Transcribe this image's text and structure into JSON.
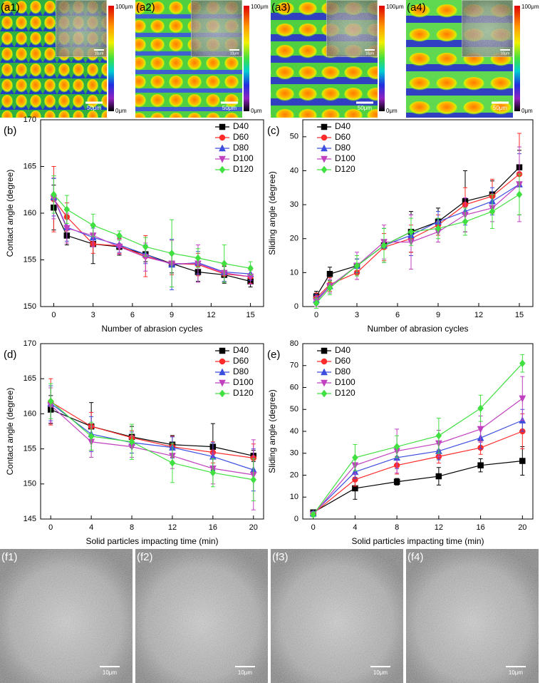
{
  "top_panels": [
    {
      "label": "(a1)",
      "scale": "50μm",
      "inset_scale": "10μm",
      "colorbar_max": "100μm",
      "colorbar_min": "0μm"
    },
    {
      "label": "(a2)",
      "scale": "50μm",
      "inset_scale": "10μm",
      "colorbar_max": "100μm",
      "colorbar_min": "0μm"
    },
    {
      "label": "(a3)",
      "scale": "50μm",
      "inset_scale": "10μm",
      "colorbar_max": "100μm",
      "colorbar_min": "0μm"
    },
    {
      "label": "(a4)",
      "scale": "50μm",
      "inset_scale": "10μm",
      "colorbar_max": "100μm",
      "colorbar_min": "0μm"
    }
  ],
  "bottom_panels": [
    {
      "label": "(f1)",
      "scale": "10μm"
    },
    {
      "label": "(f2)",
      "scale": "10μm"
    },
    {
      "label": "(f3)",
      "scale": "10μm"
    },
    {
      "label": "(f4)",
      "scale": "10μm"
    }
  ],
  "chart_data": [
    {
      "type": "line",
      "label": "(b)",
      "xlabel": "Number of abrasion cycles",
      "ylabel": "Contact angle (degree)",
      "x": [
        0,
        1,
        3,
        5,
        7,
        9,
        11,
        13,
        15
      ],
      "xlim": [
        -1,
        16
      ],
      "xticks": [
        0,
        3,
        6,
        9,
        12,
        15
      ],
      "ylim": [
        150,
        170
      ],
      "yticks": [
        150,
        155,
        160,
        165,
        170
      ],
      "legend": "upper right",
      "series": [
        {
          "name": "D40",
          "color": "#000000",
          "marker": "square",
          "values": [
            160.6,
            157.6,
            156.7,
            156.4,
            155.6,
            154.6,
            153.7,
            153.4,
            152.7
          ],
          "errors": [
            2.4,
            1.0,
            2.1,
            0.9,
            0.8,
            1.0,
            1.0,
            0.9,
            0.6
          ]
        },
        {
          "name": "D60",
          "color": "#ff2a2a",
          "marker": "circle",
          "values": [
            161.5,
            159.6,
            156.7,
            156.5,
            155.4,
            154.6,
            154.5,
            153.5,
            153.2
          ],
          "errors": [
            3.5,
            1.5,
            1.0,
            0.8,
            2.2,
            1.2,
            1.2,
            0.9,
            0.7
          ]
        },
        {
          "name": "D80",
          "color": "#3b4ee0",
          "marker": "triangle-up",
          "values": [
            161.7,
            158.5,
            157.4,
            156.6,
            155.6,
            154.5,
            154.7,
            153.7,
            153.5
          ],
          "errors": [
            2.0,
            1.5,
            1.0,
            0.8,
            1.0,
            2.7,
            1.2,
            1.0,
            0.7
          ]
        },
        {
          "name": "D100",
          "color": "#c040c0",
          "marker": "triangle-down",
          "values": [
            161.6,
            158.4,
            157.6,
            156.4,
            155.3,
            154.6,
            154.6,
            153.6,
            153.2
          ],
          "errors": [
            2.2,
            1.6,
            1.2,
            0.8,
            1.5,
            2.5,
            2.0,
            1.0,
            0.8
          ]
        },
        {
          "name": "D120",
          "color": "#40e040",
          "marker": "diamond",
          "values": [
            162.0,
            160.4,
            158.7,
            157.6,
            156.4,
            155.7,
            155.2,
            154.6,
            154.1
          ],
          "errors": [
            2.0,
            1.5,
            1.2,
            0.5,
            1.0,
            3.6,
            1.0,
            2.0,
            0.7
          ]
        }
      ]
    },
    {
      "type": "line",
      "label": "(c)",
      "xlabel": "Number of abrasion cycles",
      "ylabel": "Sliding angle (degree)",
      "x": [
        0,
        1,
        3,
        5,
        7,
        9,
        11,
        13,
        15
      ],
      "xlim": [
        -1,
        16
      ],
      "xticks": [
        0,
        3,
        6,
        9,
        12,
        15
      ],
      "ylim": [
        0,
        55
      ],
      "yticks": [
        0,
        10,
        20,
        30,
        40,
        50
      ],
      "legend": "upper left",
      "series": [
        {
          "name": "D40",
          "color": "#000000",
          "marker": "square",
          "values": [
            3,
            9.6,
            12,
            18,
            22,
            25,
            31,
            33,
            41
          ],
          "errors": [
            1.5,
            2,
            2,
            5,
            6,
            4,
            9,
            4,
            5
          ]
        },
        {
          "name": "D60",
          "color": "#ff2a2a",
          "marker": "circle",
          "values": [
            2.5,
            6.5,
            10,
            17.5,
            20,
            24,
            30,
            32.5,
            39
          ],
          "errors": [
            1.5,
            2,
            2,
            4,
            4,
            3,
            5,
            5,
            12
          ]
        },
        {
          "name": "D80",
          "color": "#3b4ee0",
          "marker": "triangle-up",
          "values": [
            2,
            6,
            12,
            18,
            21,
            25,
            28,
            31,
            36
          ],
          "errors": [
            1.5,
            2,
            2,
            5,
            6,
            3,
            4,
            4,
            9
          ]
        },
        {
          "name": "D100",
          "color": "#c040c0",
          "marker": "triangle-down",
          "values": [
            1.5,
            6,
            12,
            19,
            19,
            22,
            27,
            29,
            36
          ],
          "errors": [
            1.5,
            2,
            4,
            5,
            8,
            3,
            5,
            4,
            11
          ]
        },
        {
          "name": "D120",
          "color": "#40e040",
          "marker": "diamond",
          "values": [
            1,
            5.5,
            12,
            18,
            22,
            23,
            25,
            28,
            33
          ],
          "errors": [
            1.5,
            2,
            3,
            5,
            4,
            3,
            4,
            5,
            6
          ]
        }
      ]
    },
    {
      "type": "line",
      "label": "(d)",
      "xlabel": "Solid particles impacting time (min)",
      "ylabel": "Contact angle (degree)",
      "x": [
        0,
        4,
        8,
        12,
        16,
        20
      ],
      "xlim": [
        -1,
        21
      ],
      "xticks": [
        0,
        4,
        8,
        12,
        16,
        20
      ],
      "ylim": [
        145,
        170
      ],
      "yticks": [
        145,
        150,
        155,
        160,
        165,
        170
      ],
      "legend": "upper right",
      "series": [
        {
          "name": "D40",
          "color": "#000000",
          "marker": "square",
          "values": [
            160.6,
            158.2,
            156.7,
            155.6,
            155.3,
            154.0
          ],
          "errors": [
            2.0,
            3.4,
            1.5,
            1.3,
            3.3,
            0.8
          ]
        },
        {
          "name": "D60",
          "color": "#ff2a2a",
          "marker": "circle",
          "values": [
            161.7,
            158.2,
            156.6,
            155.3,
            154.5,
            153.7
          ],
          "errors": [
            3.3,
            2.0,
            1.0,
            1.5,
            1.5,
            2.0
          ]
        },
        {
          "name": "D80",
          "color": "#3b4ee0",
          "marker": "triangle-up",
          "values": [
            161.5,
            157.1,
            155.9,
            155.2,
            153.9,
            152.0
          ],
          "errors": [
            2.5,
            2.5,
            1.5,
            1.5,
            2.0,
            3.0
          ]
        },
        {
          "name": "D100",
          "color": "#c040c0",
          "marker": "triangle-down",
          "values": [
            161.2,
            156.0,
            155.3,
            154.0,
            152.2,
            151.3
          ],
          "errors": [
            2.5,
            2.2,
            1.5,
            1.8,
            2.2,
            5.0
          ]
        },
        {
          "name": "D120",
          "color": "#40e040",
          "marker": "diamond",
          "values": [
            161.8,
            156.8,
            156.0,
            153.0,
            151.6,
            150.6
          ],
          "errors": [
            2.5,
            2.0,
            2.5,
            2.8,
            2.0,
            3.0
          ]
        }
      ]
    },
    {
      "type": "line",
      "label": "(e)",
      "xlabel": "Solid particles impacting time (min)",
      "ylabel": "Sliding angle (degree)",
      "x": [
        0,
        4,
        8,
        12,
        16,
        20
      ],
      "xlim": [
        -1,
        21
      ],
      "xticks": [
        0,
        4,
        8,
        12,
        16,
        20
      ],
      "ylim": [
        0,
        80
      ],
      "yticks": [
        0,
        10,
        20,
        30,
        40,
        50,
        60,
        70,
        80
      ],
      "legend": "upper left",
      "series": [
        {
          "name": "D40",
          "color": "#000000",
          "marker": "square",
          "values": [
            3,
            14,
            17,
            19.5,
            24.5,
            26.5
          ],
          "errors": [
            1,
            5,
            1.5,
            4,
            3,
            6.5
          ]
        },
        {
          "name": "D60",
          "color": "#ff2a2a",
          "marker": "circle",
          "values": [
            2.5,
            18,
            24.5,
            28.5,
            32.5,
            40
          ],
          "errors": [
            1,
            3,
            4,
            3,
            3,
            8
          ]
        },
        {
          "name": "D80",
          "color": "#3b4ee0",
          "marker": "triangle-up",
          "values": [
            2.5,
            21.5,
            28,
            31,
            37,
            45
          ],
          "errors": [
            1,
            3,
            5,
            4,
            5,
            5
          ]
        },
        {
          "name": "D100",
          "color": "#c040c0",
          "marker": "triangle-down",
          "values": [
            2,
            24.5,
            31,
            34.5,
            41,
            55
          ],
          "errors": [
            1,
            4,
            10,
            6,
            6,
            10
          ]
        },
        {
          "name": "D120",
          "color": "#40e040",
          "marker": "diamond",
          "values": [
            2,
            28,
            33,
            38,
            50.5,
            71
          ],
          "errors": [
            1,
            6,
            5,
            8,
            6,
            4
          ]
        }
      ]
    }
  ]
}
